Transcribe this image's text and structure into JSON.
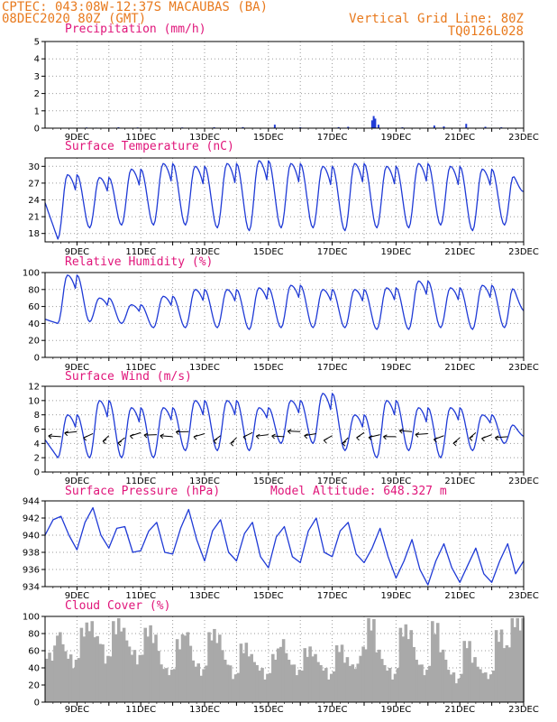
{
  "header": {
    "line1": "CPTEC:  043:08W-12:37S  MACAUBAS (BA)",
    "line2": "08DEC2020 80Z (GMT)",
    "right1": "Vertical Grid Line: 80Z",
    "right2": "TQ0126L028"
  },
  "colors": {
    "header": "#e87a1e",
    "title": "#e0157a",
    "series": "#1f3ad6",
    "cloud": "#a9a9a9",
    "barbs": "#000000"
  },
  "chart_data": [
    {
      "type": "bar",
      "title": "Precipitation (mm/h)",
      "ylim": [
        0,
        5
      ],
      "yticks": [
        0,
        1,
        2,
        3,
        4,
        5
      ],
      "x_labels": [
        "9DEC",
        "11DEC",
        "13DEC",
        "15DEC",
        "17DEC",
        "19DEC",
        "21DEC",
        "23DEC"
      ],
      "x": [
        9.3,
        9.6,
        10.3,
        10.9,
        11.5,
        12.3,
        13.3,
        14.2,
        15.2,
        16.0,
        17.2,
        17.5,
        18.25,
        18.3,
        18.35,
        18.45,
        19.2,
        20.2,
        20.5,
        21.2,
        21.8,
        22.3
      ],
      "values": [
        0.04,
        0.03,
        0.05,
        0.04,
        0.03,
        0.04,
        0.05,
        0.06,
        0.2,
        0.05,
        0.06,
        0.08,
        0.45,
        0.7,
        0.55,
        0.2,
        0.05,
        0.15,
        0.1,
        0.25,
        0.08,
        0.05
      ]
    },
    {
      "type": "line",
      "title": "Surface Temperature (nC)",
      "ylim": [
        16.5,
        31.5
      ],
      "yticks": [
        18,
        21,
        24,
        27,
        30
      ],
      "x_labels": [
        "9DEC",
        "11DEC",
        "13DEC",
        "15DEC",
        "17DEC",
        "19DEC",
        "21DEC",
        "23DEC"
      ],
      "daily_max": [
        28.5,
        28.0,
        29.5,
        30.5,
        30.0,
        30.5,
        31.0,
        30.5,
        30.0,
        30.5,
        30.0,
        30.5,
        30.0,
        29.5,
        29.0
      ],
      "daily_min": [
        17.0,
        19.0,
        19.5,
        19.5,
        19.5,
        19.0,
        18.5,
        19.0,
        19.0,
        18.5,
        19.0,
        19.0,
        19.5,
        18.5,
        19.5
      ],
      "start_value": 23.5,
      "end_value": 25.5
    },
    {
      "type": "line",
      "title": "Relative Humidity (%)",
      "ylim": [
        0,
        100
      ],
      "yticks": [
        0,
        20,
        40,
        60,
        80,
        100
      ],
      "x_labels": [
        "9DEC",
        "11DEC",
        "13DEC",
        "15DEC",
        "17DEC",
        "19DEC",
        "21DEC",
        "23DEC"
      ],
      "daily_max": [
        97,
        70,
        62,
        72,
        80,
        80,
        82,
        85,
        80,
        80,
        82,
        90,
        82,
        85,
        88
      ],
      "daily_min": [
        40,
        42,
        40,
        35,
        35,
        35,
        33,
        35,
        35,
        35,
        33,
        33,
        35,
        33,
        35
      ],
      "start_value": 45,
      "end_value": 55
    },
    {
      "type": "line",
      "title": "Surface Wind (m/s)",
      "ylim": [
        0,
        12
      ],
      "yticks": [
        0,
        2,
        4,
        6,
        8,
        10,
        12
      ],
      "x_labels": [
        "9DEC",
        "11DEC",
        "13DEC",
        "15DEC",
        "17DEC",
        "19DEC",
        "21DEC",
        "23DEC"
      ],
      "daily_max": [
        8,
        10,
        9,
        9,
        10,
        10,
        9,
        10,
        11,
        8,
        10,
        9,
        9,
        8,
        7
      ],
      "daily_min": [
        2,
        2,
        2,
        2,
        3,
        3,
        3,
        4,
        4,
        3,
        2,
        3,
        2,
        3,
        4
      ],
      "start_value": 4.5,
      "end_value": 5
    },
    {
      "type": "line",
      "title": "Surface Pressure (hPa)",
      "annotation": "Model Altitude: 648.327 m",
      "ylim": [
        934,
        944
      ],
      "yticks": [
        934,
        936,
        938,
        940,
        942,
        944
      ],
      "x_labels": [
        "9DEC",
        "11DEC",
        "13DEC",
        "15DEC",
        "17DEC",
        "19DEC",
        "21DEC",
        "23DEC"
      ],
      "x": [
        8.0,
        8.25,
        8.5,
        8.75,
        9.0,
        9.25,
        9.5,
        9.75,
        10.0,
        10.25,
        10.5,
        10.75,
        11.0,
        11.25,
        11.5,
        11.75,
        12.0,
        12.25,
        12.5,
        12.75,
        13.0,
        13.25,
        13.5,
        13.75,
        14.0,
        14.25,
        14.5,
        14.75,
        15.0,
        15.25,
        15.5,
        15.75,
        16.0,
        16.25,
        16.5,
        16.75,
        17.0,
        17.25,
        17.5,
        17.75,
        18.0,
        18.25,
        18.5,
        18.75,
        19.0,
        19.25,
        19.5,
        19.75,
        20.0,
        20.25,
        20.5,
        20.75,
        21.0,
        21.25,
        21.5,
        21.75,
        22.0,
        22.25,
        22.5,
        22.75,
        23.0
      ],
      "values": [
        940.0,
        941.8,
        942.2,
        940.0,
        938.3,
        941.5,
        943.2,
        940.0,
        938.5,
        940.8,
        941.0,
        938.0,
        938.2,
        940.5,
        941.5,
        938.0,
        937.8,
        940.8,
        943.0,
        939.5,
        937.0,
        940.5,
        941.8,
        938.0,
        937.0,
        940.2,
        941.5,
        937.5,
        936.2,
        939.8,
        941.0,
        937.5,
        936.8,
        940.5,
        942.0,
        938.0,
        937.5,
        940.5,
        941.5,
        937.8,
        936.8,
        938.5,
        940.8,
        937.5,
        935.0,
        937.0,
        939.5,
        936.0,
        934.2,
        937.0,
        939.0,
        936.2,
        934.5,
        936.5,
        938.5,
        935.5,
        934.5,
        937.0,
        939.0,
        935.5,
        937.0
      ]
    },
    {
      "type": "bar",
      "title": "Cloud Cover (%)",
      "ylim": [
        0,
        100
      ],
      "yticks": [
        0,
        20,
        40,
        60,
        80,
        100
      ],
      "x_labels": [
        "9DEC",
        "11DEC",
        "13DEC",
        "15DEC",
        "17DEC",
        "19DEC",
        "21DEC",
        "23DEC"
      ],
      "x": [
        8.25,
        8.5,
        8.75,
        9.0,
        9.25,
        9.5,
        9.75,
        10.0,
        10.25,
        10.5,
        10.75,
        11.0,
        11.25,
        11.5,
        11.75,
        12.0,
        12.25,
        12.5,
        12.75,
        13.0,
        13.25,
        13.5,
        13.75,
        14.0,
        14.25,
        14.5,
        14.75,
        15.0,
        15.25,
        15.5,
        15.75,
        16.0,
        16.25,
        16.5,
        16.75,
        17.0,
        17.25,
        17.5,
        17.75,
        18.0,
        18.25,
        18.5,
        18.75,
        19.0,
        19.25,
        19.5,
        19.75,
        20.0,
        20.25,
        20.5,
        20.75,
        21.0,
        21.25,
        21.5,
        21.75,
        22.0,
        22.25,
        22.5,
        22.75
      ],
      "values": [
        55,
        80,
        55,
        45,
        85,
        90,
        70,
        50,
        90,
        85,
        60,
        50,
        85,
        75,
        40,
        35,
        70,
        80,
        45,
        35,
        80,
        75,
        45,
        30,
        65,
        55,
        40,
        30,
        55,
        70,
        45,
        35,
        60,
        55,
        40,
        30,
        65,
        50,
        40,
        60,
        95,
        60,
        40,
        30,
        85,
        80,
        45,
        35,
        90,
        60,
        35,
        25,
        70,
        50,
        35,
        30,
        80,
        65,
        95
      ]
    }
  ]
}
